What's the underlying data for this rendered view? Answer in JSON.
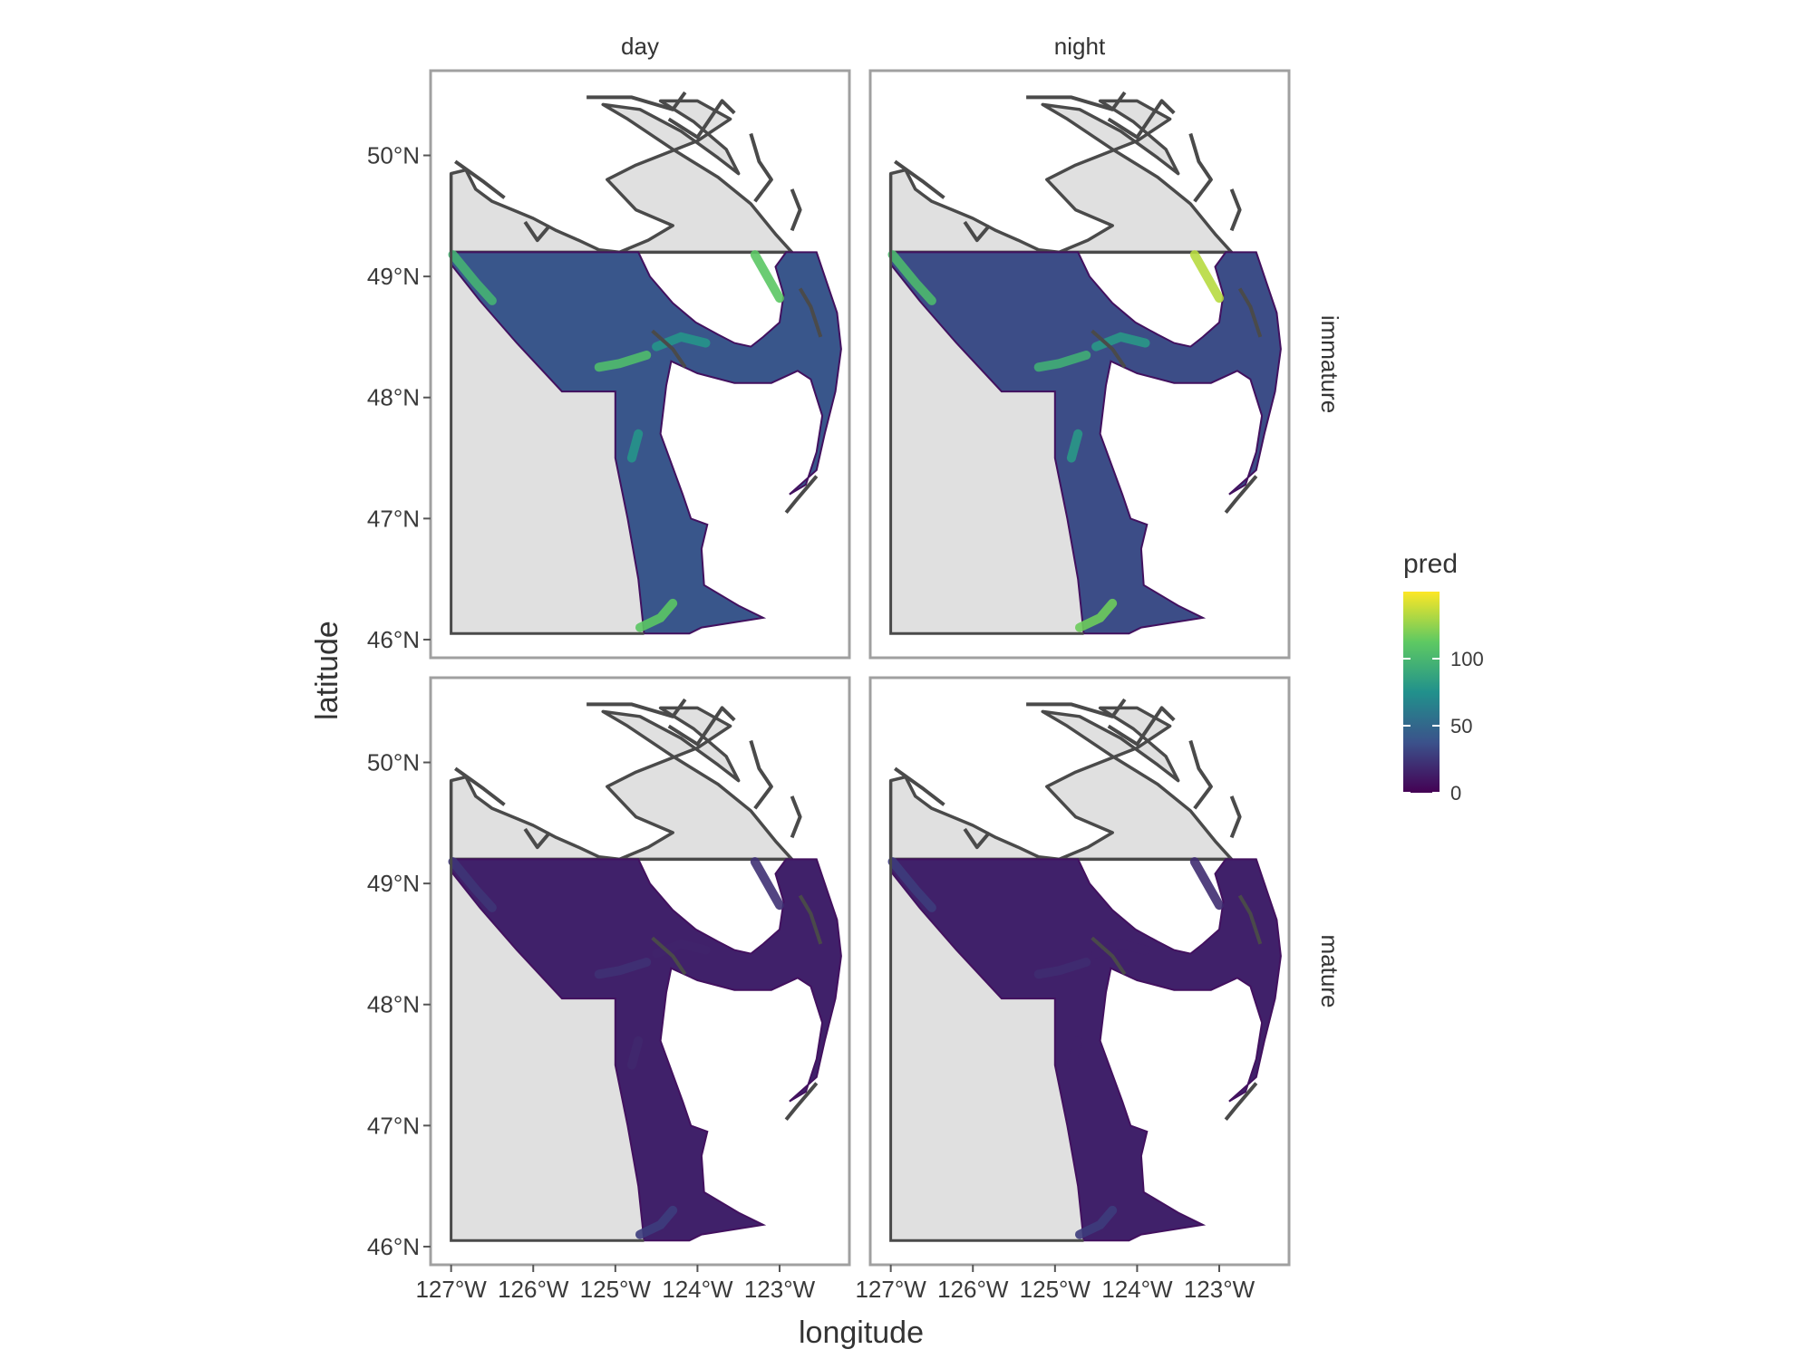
{
  "chart_data": {
    "type": "heatmap",
    "facets": {
      "columns": [
        "day",
        "night"
      ],
      "rows": [
        "immature",
        "mature"
      ]
    },
    "xlabel": "longitude",
    "ylabel": "latitude",
    "x_ticks": [
      "127°W",
      "126°W",
      "125°W",
      "124°W",
      "123°W"
    ],
    "x_tick_values": [
      -127,
      -126,
      -125,
      -124,
      -123
    ],
    "y_ticks": [
      "46°N",
      "47°N",
      "48°N",
      "49°N",
      "50°N"
    ],
    "y_tick_values": [
      46,
      47,
      48,
      49,
      50
    ],
    "xlim": [
      -127.25,
      -122.15
    ],
    "ylim": [
      45.85,
      50.7
    ],
    "legend": {
      "title": "pred",
      "labels": [
        "0",
        "50",
        "100"
      ],
      "values": [
        0,
        50,
        100
      ],
      "range": [
        0,
        150
      ],
      "colormap": "viridis",
      "stops": [
        "#440154",
        "#3b528b",
        "#21918c",
        "#5ec962",
        "#fde725"
      ],
      "placement": "right"
    },
    "panel_summary": [
      {
        "time": "day",
        "stage": "immature",
        "typical_pred": 40,
        "max_pred": 130
      },
      {
        "time": "night",
        "stage": "immature",
        "typical_pred": 35,
        "max_pred": 145
      },
      {
        "time": "day",
        "stage": "mature",
        "typical_pred": 15,
        "max_pred": 40
      },
      {
        "time": "night",
        "stage": "mature",
        "typical_pred": 15,
        "max_pred": 50
      }
    ],
    "colors": {
      "land": "#e0e0e0",
      "coastline": "#4a4a4a",
      "panel_border": "#a0a0a0",
      "background": "#ffffff"
    },
    "grid": false
  }
}
